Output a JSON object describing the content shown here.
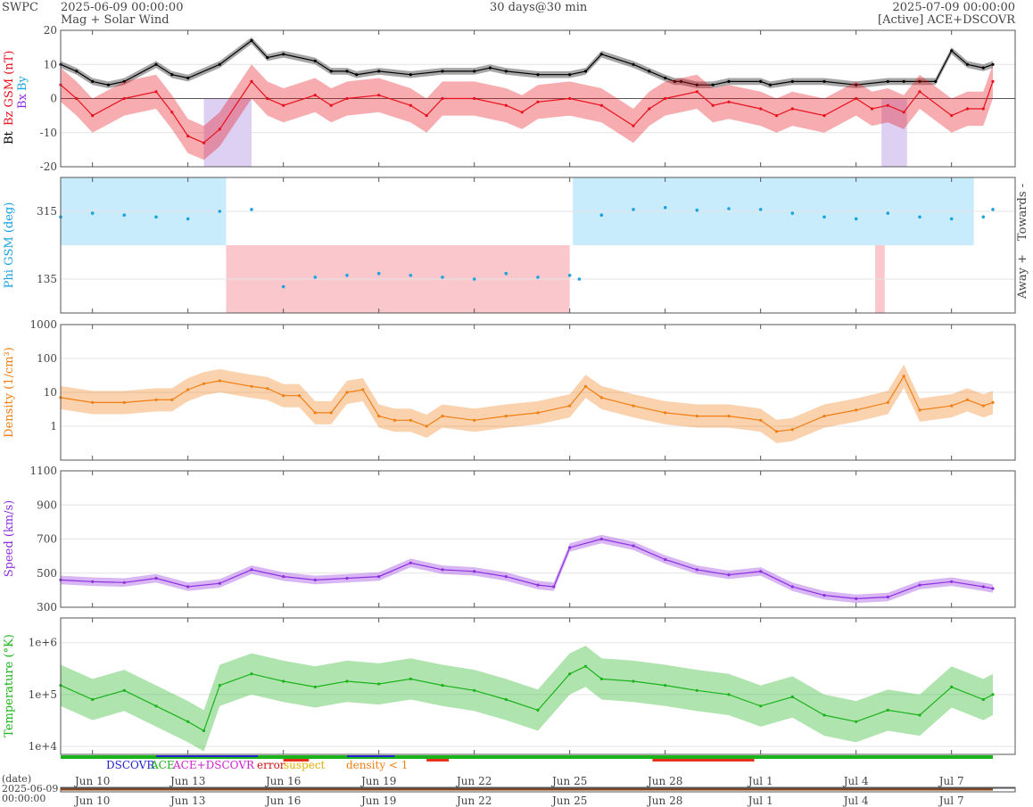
{
  "header": {
    "org": "SWPC",
    "start": "2025-06-09 00:00:00",
    "subtitle": "Mag + Solar Wind",
    "span": "30 days@30 min",
    "end": "2025-07-09 00:00:00",
    "source": "[Active] ACE+DSCOVR"
  },
  "colors": {
    "bt": "#000000",
    "bz": "#e8101c",
    "bx": "#8b2be2",
    "by": "#1aa3e0",
    "phi": "#1aa3e0",
    "density": "#f07f13",
    "speed": "#8e2fe0",
    "temperature": "#1ab31a",
    "towards_band": "#c8ecfb",
    "away_band": "#fac8cc",
    "bz_south_band": "#ddd0f2"
  },
  "chart_data": [
    {
      "type": "line",
      "name": "mag",
      "ylabel_parts": [
        "Bt",
        "Bz GSM (nT)",
        "Bx",
        "By"
      ],
      "ylim": [
        -20,
        20
      ],
      "yticks": [
        20,
        10,
        0,
        -10,
        -20
      ],
      "x_unit": "days since 2025-06-09",
      "series": [
        {
          "name": "Bt",
          "x": [
            0,
            0.5,
            1,
            1.5,
            2,
            3,
            3.5,
            4,
            5,
            6,
            6.5,
            7,
            8,
            8.5,
            9,
            9.3,
            10,
            11,
            12,
            13,
            13.5,
            14,
            15,
            16,
            16.5,
            17,
            18,
            18.5,
            19,
            19.3,
            19.5,
            20,
            20.5,
            21,
            22,
            22.3,
            23,
            24,
            25,
            26,
            26.5,
            27,
            27.5,
            28,
            28.5,
            29,
            29.3
          ],
          "y": [
            10,
            8,
            5,
            4,
            5,
            10,
            7,
            6,
            10,
            17,
            12,
            13,
            11,
            8,
            8,
            7,
            8,
            7,
            8,
            8,
            9,
            8,
            7,
            7,
            8,
            13,
            10,
            8,
            6,
            5,
            5,
            4,
            4,
            5,
            5,
            4,
            5,
            5,
            4,
            5,
            5,
            5,
            5,
            14,
            10,
            9,
            10
          ]
        },
        {
          "name": "Bz",
          "x": [
            0,
            0.5,
            1,
            2,
            3,
            3.5,
            4,
            4.5,
            5,
            6,
            6.5,
            7,
            8,
            8.5,
            9,
            10,
            11,
            11.5,
            12,
            13,
            14,
            14.5,
            15,
            16,
            17,
            18,
            18.5,
            19,
            20,
            20.5,
            21,
            22,
            22.5,
            23,
            24,
            25,
            25.5,
            26,
            26.5,
            27,
            28,
            28.5,
            29,
            29.3
          ],
          "y": [
            4,
            0,
            -5,
            0,
            2,
            -4,
            -11,
            -13,
            -9,
            5,
            0,
            -2,
            1,
            -2,
            0,
            1,
            -2,
            -5,
            0,
            0,
            -2,
            -4,
            -1,
            0,
            -2,
            -8,
            -3,
            0,
            2,
            -2,
            -1,
            -3,
            -5,
            -3,
            -5,
            0,
            -3,
            -2,
            -4,
            2,
            -5,
            -3,
            -3,
            5
          ]
        }
      ]
    },
    {
      "type": "scatter",
      "name": "phi",
      "ylabel": "Phi GSM (deg)",
      "yticks": [
        315,
        135
      ],
      "ylim": [
        45,
        405
      ],
      "side_labels": [
        "Towards -",
        "Away +"
      ],
      "x": [
        0,
        1,
        2,
        3,
        4,
        5,
        6,
        7,
        8,
        9,
        10,
        11,
        12,
        13,
        14,
        15,
        16,
        16.3,
        17,
        18,
        19,
        20,
        21,
        22,
        23,
        24,
        25,
        26,
        27,
        28,
        29,
        29.3
      ],
      "y": [
        300,
        310,
        305,
        300,
        295,
        315,
        320,
        115,
        140,
        145,
        150,
        145,
        140,
        135,
        150,
        140,
        145,
        135,
        305,
        320,
        325,
        318,
        322,
        320,
        310,
        300,
        295,
        310,
        300,
        295,
        300,
        320
      ]
    },
    {
      "type": "line",
      "name": "density",
      "ylabel": "Density (1/cm³)",
      "yscale": "log",
      "yticks": [
        "1000",
        "100",
        "10",
        "1"
      ],
      "ylim": [
        0.1,
        1000
      ],
      "x": [
        0,
        1,
        2,
        3,
        3.5,
        4,
        4.5,
        5,
        6,
        6.5,
        7,
        7.5,
        8,
        8.5,
        9,
        9.5,
        10,
        10.5,
        11,
        11.5,
        12,
        13,
        14,
        15,
        16,
        16.5,
        17,
        18,
        19,
        20,
        21,
        22,
        22.5,
        23,
        24,
        25,
        26,
        26.5,
        27,
        28,
        28.5,
        29,
        29.3
      ],
      "y": [
        7,
        5,
        5,
        6,
        6,
        12,
        18,
        22,
        15,
        13,
        8,
        8,
        2.5,
        2.5,
        10,
        12,
        2,
        1.5,
        1.5,
        1,
        2,
        1.5,
        2,
        2.5,
        4,
        15,
        7,
        4,
        2.5,
        2,
        2,
        1.5,
        0.7,
        0.8,
        2,
        3,
        5,
        30,
        3,
        4,
        6,
        4,
        5
      ]
    },
    {
      "type": "line",
      "name": "speed",
      "ylabel": "Speed (km/s)",
      "ylim": [
        300,
        1100
      ],
      "yticks": [
        1100,
        900,
        700,
        500,
        300
      ],
      "x": [
        0,
        1,
        2,
        3,
        4,
        5,
        6,
        7,
        8,
        9,
        10,
        11,
        12,
        13,
        14,
        15,
        15.5,
        16,
        17,
        18,
        19,
        20,
        21,
        22,
        23,
        24,
        25,
        26,
        27,
        28,
        29,
        29.3
      ],
      "y": [
        460,
        450,
        445,
        470,
        420,
        440,
        520,
        480,
        460,
        470,
        480,
        560,
        520,
        510,
        480,
        430,
        420,
        650,
        700,
        660,
        580,
        520,
        490,
        510,
        420,
        370,
        350,
        360,
        430,
        450,
        420,
        410
      ]
    },
    {
      "type": "line",
      "name": "temperature",
      "ylabel": "Temperature (°K)",
      "yscale": "log",
      "yticks": [
        "1e+6",
        "1e+5",
        "1e+4"
      ],
      "ylim": [
        7000,
        3000000
      ],
      "x": [
        0,
        1,
        2,
        3,
        4,
        4.5,
        5,
        6,
        7,
        8,
        9,
        10,
        11,
        12,
        13,
        14,
        15,
        16,
        16.5,
        17,
        18,
        19,
        20,
        21,
        22,
        23,
        24,
        25,
        26,
        27,
        28,
        29,
        29.3
      ],
      "y": [
        150000,
        80000,
        120000,
        60000,
        30000,
        20000,
        150000,
        250000,
        180000,
        140000,
        180000,
        160000,
        200000,
        150000,
        120000,
        80000,
        50000,
        250000,
        350000,
        200000,
        180000,
        150000,
        120000,
        100000,
        60000,
        90000,
        40000,
        30000,
        50000,
        40000,
        140000,
        80000,
        100000
      ]
    }
  ],
  "legend": {
    "dscovr": "DSCOVR",
    "ace": "ACE",
    "both": "ACE+DSCOVR",
    "error": "error",
    "suspect": "suspect",
    "density": "density < 1"
  },
  "xaxis": {
    "ticks": [
      "Jun 10",
      "Jun 13",
      "Jun 16",
      "Jun 19",
      "Jun 22",
      "Jun 25",
      "Jun 28",
      "Jul 1",
      "Jul 4",
      "Jul 7"
    ],
    "tick_days": [
      1,
      4,
      7,
      10,
      13,
      16,
      19,
      22,
      25,
      28
    ],
    "date_label": "(date)",
    "date_start": "2025-06-09",
    "time_start": "00:00:00"
  }
}
